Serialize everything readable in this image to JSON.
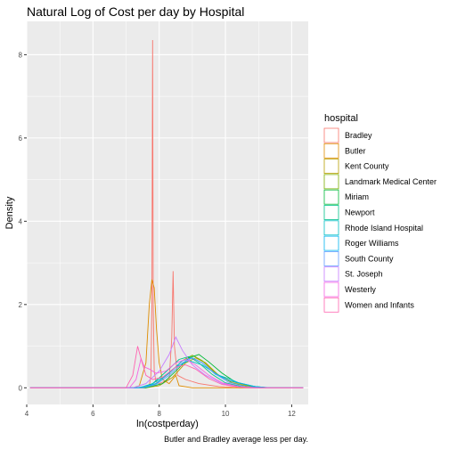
{
  "chart_data": {
    "type": "line",
    "title": "Natural Log of Cost per day by Hospital",
    "xlabel": "ln(costperday)",
    "ylabel": "Density",
    "caption": "Butler and Bradley average less per day.",
    "xlim": [
      4,
      12.5
    ],
    "ylim": [
      -0.4,
      8.8
    ],
    "xticks": [
      4,
      6,
      8,
      10,
      12
    ],
    "yticks": [
      0,
      2,
      4,
      6,
      8
    ],
    "grid": true,
    "legend_position": "right",
    "legend_title": "hospital",
    "series": [
      {
        "name": "Bradley",
        "color": "#F8766D",
        "points": [
          [
            4.1,
            0
          ],
          [
            7.55,
            0
          ],
          [
            7.7,
            0.05
          ],
          [
            7.75,
            0.3
          ],
          [
            7.78,
            2.0
          ],
          [
            7.8,
            8.35
          ],
          [
            7.82,
            2.0
          ],
          [
            7.85,
            0.4
          ],
          [
            7.9,
            0.15
          ],
          [
            8.0,
            0.1
          ],
          [
            8.3,
            0.2
          ],
          [
            8.38,
            1.2
          ],
          [
            8.42,
            2.8
          ],
          [
            8.46,
            1.0
          ],
          [
            8.55,
            0.3
          ],
          [
            8.8,
            0.2
          ],
          [
            9.2,
            0.1
          ],
          [
            9.8,
            0.03
          ],
          [
            10.5,
            0
          ],
          [
            12.35,
            0
          ]
        ]
      },
      {
        "name": "Butler",
        "color": "#DE8C00",
        "points": [
          [
            4.1,
            0
          ],
          [
            7.2,
            0
          ],
          [
            7.4,
            0.05
          ],
          [
            7.6,
            0.6
          ],
          [
            7.7,
            2.0
          ],
          [
            7.78,
            2.6
          ],
          [
            7.85,
            2.4
          ],
          [
            7.92,
            1.4
          ],
          [
            8.0,
            0.6
          ],
          [
            8.1,
            0.2
          ],
          [
            8.3,
            0.1
          ],
          [
            8.5,
            0.3
          ],
          [
            8.6,
            0.05
          ],
          [
            9.0,
            0
          ],
          [
            12.35,
            0
          ]
        ]
      },
      {
        "name": "Kent County",
        "color": "#B79F00",
        "points": [
          [
            4.1,
            0
          ],
          [
            7.6,
            0
          ],
          [
            8.0,
            0.05
          ],
          [
            8.4,
            0.25
          ],
          [
            8.8,
            0.6
          ],
          [
            9.1,
            0.72
          ],
          [
            9.4,
            0.6
          ],
          [
            9.8,
            0.3
          ],
          [
            10.2,
            0.15
          ],
          [
            10.7,
            0.05
          ],
          [
            11.2,
            0
          ],
          [
            12.35,
            0
          ]
        ]
      },
      {
        "name": "Landmark Medical Center",
        "color": "#7CAE00",
        "points": [
          [
            4.1,
            0
          ],
          [
            7.5,
            0
          ],
          [
            7.9,
            0.1
          ],
          [
            8.3,
            0.35
          ],
          [
            8.7,
            0.65
          ],
          [
            9.0,
            0.78
          ],
          [
            9.3,
            0.65
          ],
          [
            9.7,
            0.35
          ],
          [
            10.2,
            0.12
          ],
          [
            10.7,
            0.03
          ],
          [
            11.2,
            0
          ],
          [
            12.35,
            0
          ]
        ]
      },
      {
        "name": "Miriam",
        "color": "#00BA38",
        "points": [
          [
            4.1,
            0
          ],
          [
            7.6,
            0
          ],
          [
            8.1,
            0.1
          ],
          [
            8.5,
            0.4
          ],
          [
            8.9,
            0.72
          ],
          [
            9.2,
            0.8
          ],
          [
            9.5,
            0.62
          ],
          [
            9.9,
            0.35
          ],
          [
            10.3,
            0.14
          ],
          [
            10.8,
            0.04
          ],
          [
            11.3,
            0
          ],
          [
            12.35,
            0
          ]
        ]
      },
      {
        "name": "Newport",
        "color": "#00C08B",
        "points": [
          [
            4.1,
            0
          ],
          [
            7.4,
            0
          ],
          [
            7.8,
            0.1
          ],
          [
            8.2,
            0.38
          ],
          [
            8.6,
            0.68
          ],
          [
            8.9,
            0.75
          ],
          [
            9.2,
            0.6
          ],
          [
            9.6,
            0.32
          ],
          [
            10.0,
            0.12
          ],
          [
            10.5,
            0.03
          ],
          [
            11.0,
            0
          ],
          [
            12.35,
            0
          ]
        ]
      },
      {
        "name": "Rhode Island Hospital",
        "color": "#00BFC4",
        "points": [
          [
            4.1,
            0
          ],
          [
            7.3,
            0
          ],
          [
            7.7,
            0.05
          ],
          [
            8.1,
            0.25
          ],
          [
            8.5,
            0.5
          ],
          [
            8.9,
            0.65
          ],
          [
            9.3,
            0.55
          ],
          [
            9.8,
            0.3
          ],
          [
            10.1,
            0.22
          ],
          [
            10.4,
            0.12
          ],
          [
            10.9,
            0.03
          ],
          [
            11.4,
            0
          ],
          [
            12.35,
            0
          ]
        ]
      },
      {
        "name": "Roger Williams",
        "color": "#00B4F0",
        "points": [
          [
            4.1,
            0
          ],
          [
            7.4,
            0
          ],
          [
            7.9,
            0.1
          ],
          [
            8.3,
            0.35
          ],
          [
            8.7,
            0.65
          ],
          [
            9.0,
            0.72
          ],
          [
            9.3,
            0.6
          ],
          [
            9.7,
            0.32
          ],
          [
            10.1,
            0.18
          ],
          [
            10.4,
            0.12
          ],
          [
            10.9,
            0.03
          ],
          [
            11.3,
            0
          ],
          [
            12.35,
            0
          ]
        ]
      },
      {
        "name": "South County",
        "color": "#619CFF",
        "points": [
          [
            4.1,
            0
          ],
          [
            7.5,
            0
          ],
          [
            7.9,
            0.08
          ],
          [
            8.3,
            0.3
          ],
          [
            8.7,
            0.6
          ],
          [
            9.0,
            0.72
          ],
          [
            9.3,
            0.6
          ],
          [
            9.7,
            0.33
          ],
          [
            10.1,
            0.13
          ],
          [
            10.6,
            0.03
          ],
          [
            11.1,
            0
          ],
          [
            12.35,
            0
          ]
        ]
      },
      {
        "name": "St. Joseph",
        "color": "#C77CFF",
        "points": [
          [
            4.1,
            0
          ],
          [
            7.2,
            0
          ],
          [
            7.6,
            0.1
          ],
          [
            8.0,
            0.4
          ],
          [
            8.3,
            0.8
          ],
          [
            8.5,
            1.22
          ],
          [
            8.7,
            0.9
          ],
          [
            9.0,
            0.55
          ],
          [
            9.4,
            0.3
          ],
          [
            9.9,
            0.1
          ],
          [
            10.4,
            0.02
          ],
          [
            10.8,
            0
          ],
          [
            12.35,
            0
          ]
        ]
      },
      {
        "name": "Westerly",
        "color": "#F564E3",
        "points": [
          [
            4.1,
            0
          ],
          [
            7.1,
            0
          ],
          [
            7.3,
            0.2
          ],
          [
            7.45,
            0.7
          ],
          [
            7.55,
            0.5
          ],
          [
            7.7,
            0.45
          ],
          [
            7.9,
            0.35
          ],
          [
            8.2,
            0.4
          ],
          [
            8.5,
            0.6
          ],
          [
            8.8,
            0.68
          ],
          [
            9.1,
            0.55
          ],
          [
            9.5,
            0.3
          ],
          [
            9.9,
            0.12
          ],
          [
            10.4,
            0.03
          ],
          [
            10.9,
            0
          ],
          [
            12.35,
            0
          ]
        ]
      },
      {
        "name": "Women and Infants",
        "color": "#FF64B0",
        "points": [
          [
            4.1,
            0
          ],
          [
            7.0,
            0
          ],
          [
            7.2,
            0.3
          ],
          [
            7.35,
            1.0
          ],
          [
            7.45,
            0.7
          ],
          [
            7.6,
            0.3
          ],
          [
            7.8,
            0.2
          ],
          [
            8.1,
            0.25
          ],
          [
            8.5,
            0.5
          ],
          [
            8.8,
            0.55
          ],
          [
            9.1,
            0.45
          ],
          [
            9.5,
            0.22
          ],
          [
            9.9,
            0.08
          ],
          [
            10.4,
            0.02
          ],
          [
            10.8,
            0
          ],
          [
            12.35,
            0
          ]
        ]
      }
    ]
  }
}
